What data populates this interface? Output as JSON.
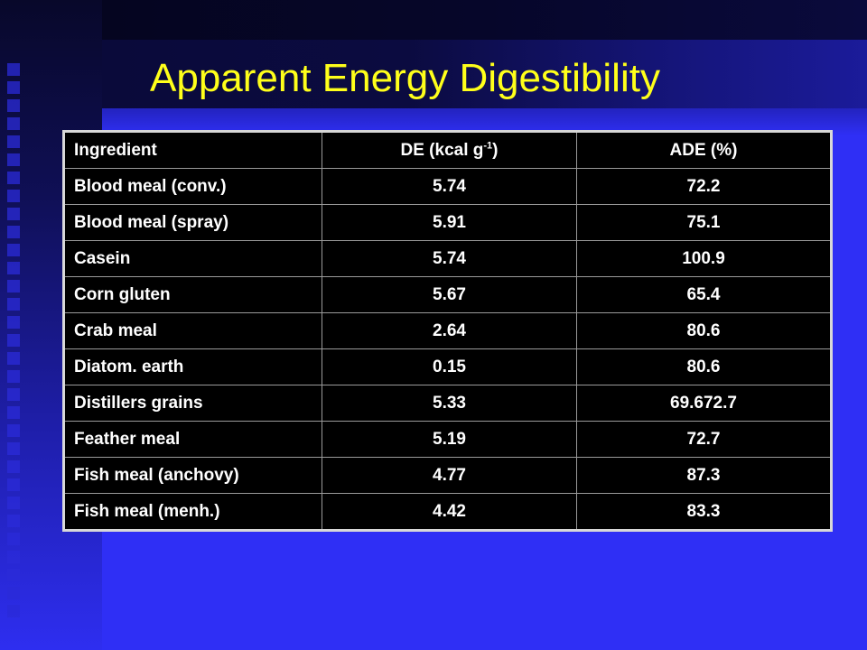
{
  "slide": {
    "title": "Apparent Energy Digestibility"
  },
  "table": {
    "headers": {
      "ingredient": "Ingredient",
      "de_prefix": "DE (kcal g",
      "de_sup": "-1",
      "de_suffix": ")",
      "ade": "ADE (%)"
    },
    "rows": [
      {
        "ingredient": "Blood meal (conv.)",
        "de": "5.74",
        "ade": "72.2"
      },
      {
        "ingredient": "Blood meal (spray)",
        "de": "5.91",
        "ade": "75.1"
      },
      {
        "ingredient": "Casein",
        "de": "5.74",
        "ade": "100.9"
      },
      {
        "ingredient": "Corn gluten",
        "de": "5.67",
        "ade": "65.4"
      },
      {
        "ingredient": "Crab meal",
        "de": "2.64",
        "ade": "80.6"
      },
      {
        "ingredient": "Diatom. earth",
        "de": "0.15",
        "ade": "80.6"
      },
      {
        "ingredient": "Distillers grains",
        "de": "5.33",
        "ade": "69.672.7"
      },
      {
        "ingredient": "Feather meal",
        "de": "5.19",
        "ade": "72.7"
      },
      {
        "ingredient": "Fish meal (anchovy)",
        "de": "4.77",
        "ade": "87.3"
      },
      {
        "ingredient": "Fish meal (menh.)",
        "de": "4.42",
        "ade": "83.3"
      }
    ]
  },
  "colors": {
    "background": "#2f2ff5",
    "title": "#ffff1a",
    "table_bg": "#000000",
    "table_text": "#ffffff"
  }
}
